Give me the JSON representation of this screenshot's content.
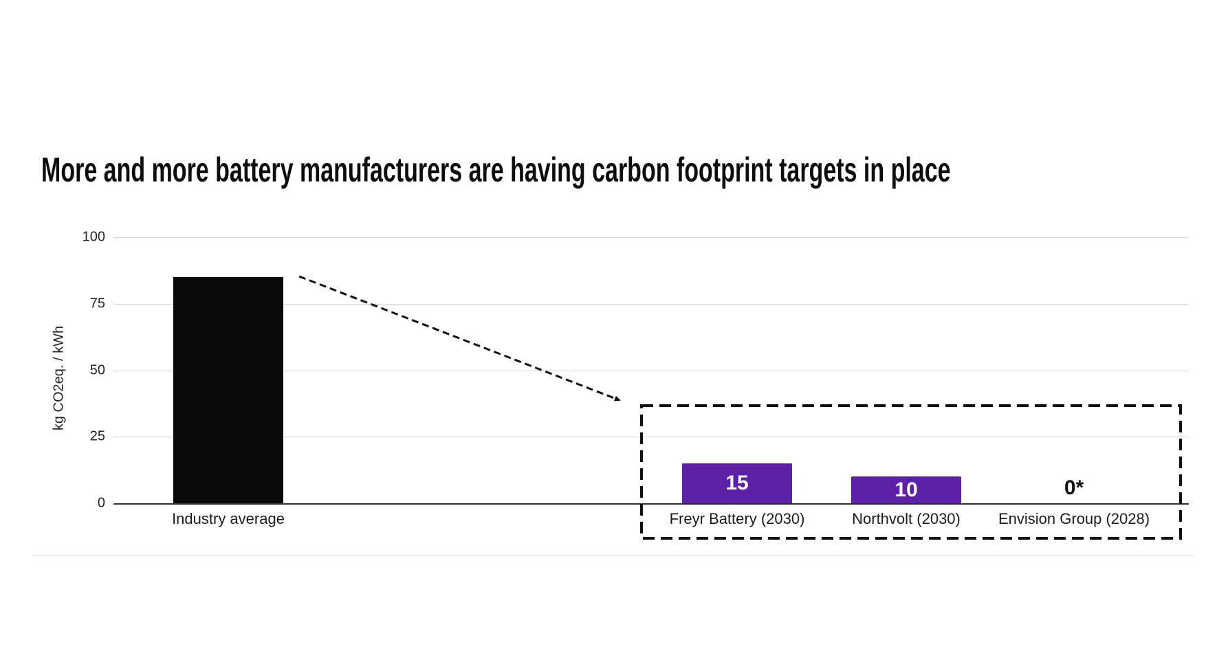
{
  "page": {
    "title": "More and more battery manufacturers are having carbon footprint targets in place"
  },
  "chart_data": {
    "type": "bar",
    "title": "More and more battery manufacturers are having carbon footprint targets in place",
    "xlabel": "",
    "ylabel": "kg CO2eq. / kWh",
    "ylim": [
      0,
      100
    ],
    "yticks": [
      0,
      25,
      50,
      75,
      100
    ],
    "grid": true,
    "categories": [
      "Industry average",
      "Freyr Battery (2030)",
      "Northvolt (2030)",
      "Envision Group (2028)"
    ],
    "values": [
      85,
      15,
      10,
      0
    ],
    "bar_value_labels": [
      "",
      "15",
      "10",
      "0*"
    ],
    "bar_colors": [
      "#0a0a0a",
      "#5e1fa9",
      "#5e1fa9",
      "none"
    ],
    "value_label_colors": [
      "#ffffff",
      "#ffffff",
      "#ffffff",
      "#111111"
    ],
    "annotations": {
      "arrow": "dashed arrow from Industry average bar down to target group box",
      "group_box": "dashed rectangle grouping Freyr Battery, Northvolt and Envision Group targets"
    },
    "colors": {
      "accent_purple": "#5e1fa9",
      "bar_black": "#0a0a0a",
      "gridline": "#d7d3d1",
      "axis": "#333333"
    }
  }
}
